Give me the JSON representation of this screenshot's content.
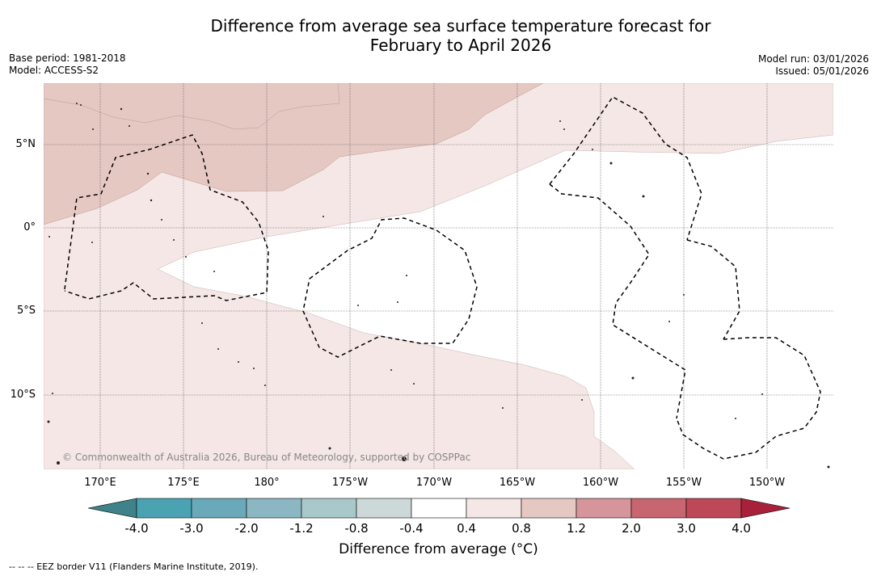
{
  "title": {
    "line1": "Difference from average sea surface temperature forecast for",
    "line2": "February to April 2026"
  },
  "meta_left": {
    "base_period": "Base period: 1981-2018",
    "model": "Model: ACCESS-S2"
  },
  "meta_right": {
    "model_run": "Model run: 03/01/2026",
    "issued": "Issued: 05/01/2026"
  },
  "map": {
    "lat_labels": [
      "5°N",
      "0°",
      "5°S",
      "10°S"
    ],
    "lon_labels": [
      "170°E",
      "175°E",
      "180°",
      "175°W",
      "170°W",
      "165°W",
      "160°W",
      "155°W",
      "150°W"
    ],
    "copyright": "© Commonwealth of Australia 2026, Bureau of Meteorology, supported by COSPPac",
    "shading_colors": {
      "band_0_4_to_0_8": "#f4e7e5",
      "band_0_8_to_1_2": "#e6c8c3",
      "neutral": "#ffffff"
    }
  },
  "colorbar": {
    "ticks": [
      "-4.0",
      "-3.0",
      "-2.0",
      "-1.2",
      "-0.8",
      "-0.4",
      "0.4",
      "0.8",
      "1.2",
      "2.0",
      "3.0",
      "4.0"
    ],
    "colors": [
      "#3f8289",
      "#4ba2b3",
      "#6aa9b9",
      "#8bb7c3",
      "#a9c8ca",
      "#cdd9d8",
      "#ffffff",
      "#f4e7e5",
      "#e6c8c3",
      "#d5959a",
      "#c76570",
      "#bd4858",
      "#a8203a"
    ],
    "label": "Difference from average (°C)"
  },
  "footnote": "-- -- -- EEZ border V11 (Flanders Marine Institute, 2019)."
}
